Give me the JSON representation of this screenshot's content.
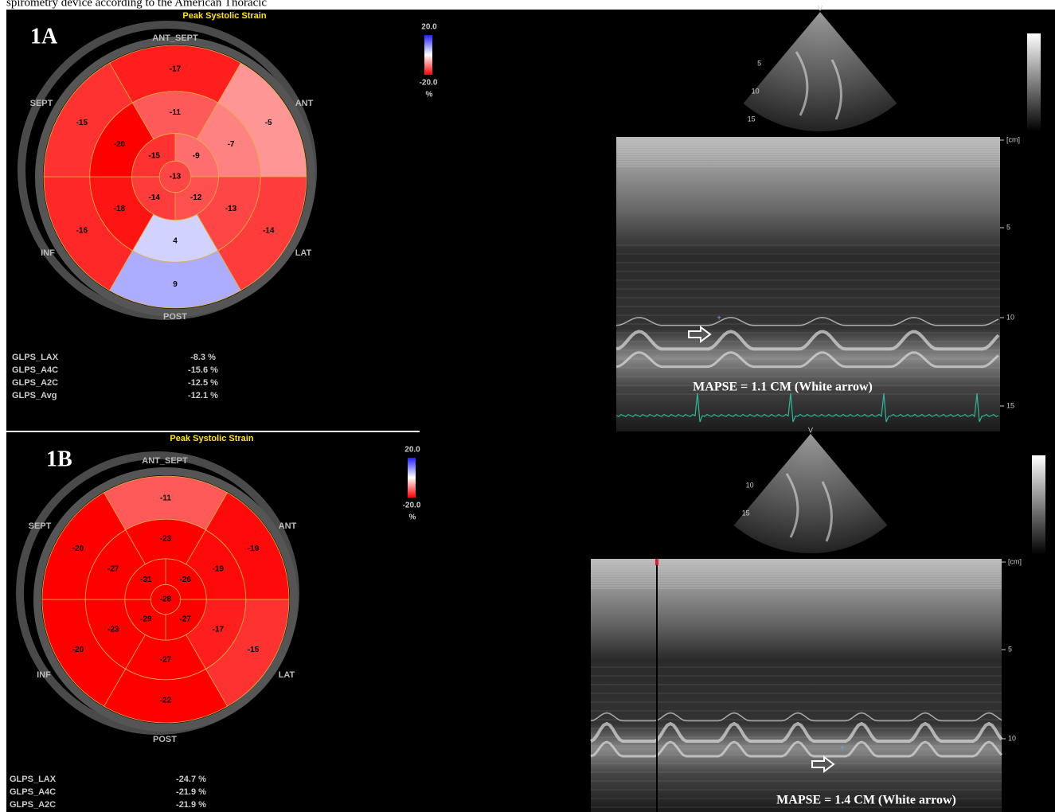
{
  "caption": "spirometry device according to the American Thoracic",
  "panels": [
    {
      "label": "1A",
      "title": "Peak Systolic Strain",
      "wall_labels": {
        "ant_sept": "ANT_SEPT",
        "ant": "ANT",
        "lat": "LAT",
        "post": "POST",
        "inf": "INF",
        "sept": "SEPT"
      },
      "scale": {
        "max": "20.0",
        "min": "-20.0",
        "unit": "%"
      },
      "segments": {
        "basal": [
          -17,
          -5,
          -14,
          9,
          -16,
          -15
        ],
        "mid": [
          -11,
          -7,
          -13,
          4,
          -18,
          -20
        ],
        "apical": [
          -9,
          -12,
          -14,
          -15
        ],
        "apex": -13
      },
      "glps": [
        {
          "name": "GLPS_LAX",
          "value": "-8.3 %"
        },
        {
          "name": "GLPS_A4C",
          "value": "-15.6 %"
        },
        {
          "name": "GLPS_A2C",
          "value": "-12.5 %"
        },
        {
          "name": "GLPS_Avg",
          "value": "-12.1 %"
        }
      ],
      "echo": {
        "fan_labels": [
          "V",
          "5",
          "10",
          "15"
        ],
        "depth_labels": [
          "[cm]",
          "5",
          "10",
          "15"
        ],
        "mapse": "MAPSE = 1.1 CM (White arrow)"
      }
    },
    {
      "label": "1B",
      "title": "Peak Systolic Strain",
      "wall_labels": {
        "ant_sept": "ANT_SEPT",
        "ant": "ANT",
        "lat": "LAT",
        "post": "POST",
        "inf": "INF",
        "sept": "SEPT"
      },
      "scale": {
        "max": "20.0",
        "min": "-20.0",
        "unit": "%"
      },
      "segments": {
        "basal": [
          -11,
          -19,
          -15,
          -22,
          -20,
          -20
        ],
        "mid": [
          -23,
          -19,
          -17,
          -27,
          -23,
          -27
        ],
        "apical": [
          -26,
          -27,
          -29,
          -31
        ],
        "apex": -28
      },
      "glps": [
        {
          "name": "GLPS_LAX",
          "value": "-24.7 %"
        },
        {
          "name": "GLPS_A4C",
          "value": "-21.9 %"
        },
        {
          "name": "GLPS_A2C",
          "value": "-21.9 %"
        }
      ],
      "echo": {
        "fan_labels": [
          "V",
          "10",
          "15"
        ],
        "depth_labels": [
          "[cm]",
          "5",
          "10"
        ],
        "mapse": "MAPSE = 1.4 CM (White arrow)"
      }
    }
  ]
}
